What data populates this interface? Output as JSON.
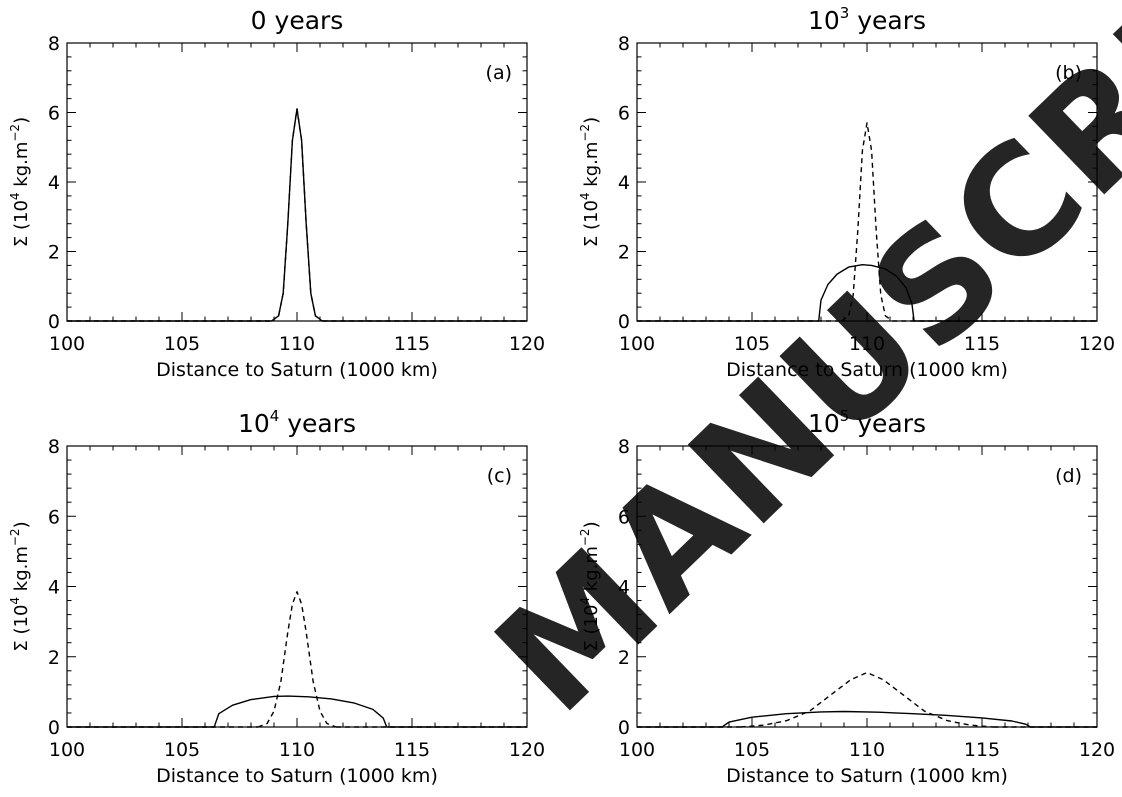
{
  "watermark": "MANUSCRIPT",
  "chart_data": [
    {
      "type": "line",
      "panel_label": "(a)",
      "title_base": "0 years",
      "title_sup": "",
      "title_suffix": "",
      "xlabel": "Distance to Saturn (1000 km)",
      "ylabel_parts": [
        "Σ (10",
        "4",
        " kg.m",
        "−2",
        ")"
      ],
      "xlim": [
        100,
        120
      ],
      "ylim": [
        0,
        8
      ],
      "x_ticks": [
        "100",
        "105",
        "110",
        "115",
        "120"
      ],
      "y_ticks": [
        "0",
        "2",
        "4",
        "6",
        "8"
      ],
      "series": [
        {
          "style": "solid",
          "x": [
            108.9,
            109.2,
            109.4,
            109.6,
            109.8,
            110.0,
            110.2,
            110.4,
            110.6,
            110.8,
            111.1
          ],
          "y": [
            0,
            0.15,
            0.8,
            2.8,
            5.2,
            6.1,
            5.2,
            2.8,
            0.8,
            0.15,
            0
          ]
        },
        {
          "style": "dashed",
          "x": [
            108.9,
            109.2,
            109.4,
            109.6,
            109.8,
            110.0,
            110.2,
            110.4,
            110.6,
            110.8,
            111.1
          ],
          "y": [
            0,
            0.15,
            0.8,
            2.8,
            5.2,
            6.1,
            5.2,
            2.8,
            0.8,
            0.15,
            0
          ]
        }
      ]
    },
    {
      "type": "line",
      "panel_label": "(b)",
      "title_base": "10",
      "title_sup": "3",
      "title_suffix": " years",
      "xlabel": "Distance to Saturn (1000 km)",
      "ylabel_parts": [
        "Σ (10",
        "4",
        " kg.m",
        "−2",
        ")"
      ],
      "xlim": [
        100,
        120
      ],
      "ylim": [
        0,
        8
      ],
      "x_ticks": [
        "100",
        "105",
        "110",
        "115",
        "120"
      ],
      "y_ticks": [
        "0",
        "2",
        "4",
        "6",
        "8"
      ],
      "series": [
        {
          "style": "solid",
          "x": [
            107.9,
            108.0,
            108.3,
            108.7,
            109.2,
            109.8,
            110.2,
            110.8,
            111.3,
            111.7,
            111.95,
            112.05
          ],
          "y": [
            0,
            0.6,
            1.05,
            1.35,
            1.55,
            1.62,
            1.6,
            1.5,
            1.28,
            0.95,
            0.5,
            0
          ]
        },
        {
          "style": "dashed",
          "x": [
            108.9,
            109.2,
            109.4,
            109.6,
            109.8,
            110.0,
            110.2,
            110.4,
            110.6,
            110.8,
            111.1
          ],
          "y": [
            0,
            0.15,
            0.75,
            2.6,
            4.9,
            5.7,
            4.9,
            2.6,
            0.75,
            0.15,
            0
          ]
        }
      ]
    },
    {
      "type": "line",
      "panel_label": "(c)",
      "title_base": "10",
      "title_sup": "4",
      "title_suffix": " years",
      "xlabel": "Distance to Saturn (1000 km)",
      "ylabel_parts": [
        "Σ (10",
        "4",
        " kg.m",
        "−2",
        ")"
      ],
      "xlim": [
        100,
        120
      ],
      "ylim": [
        0,
        8
      ],
      "x_ticks": [
        "100",
        "105",
        "110",
        "115",
        "120"
      ],
      "y_ticks": [
        "0",
        "2",
        "4",
        "6",
        "8"
      ],
      "series": [
        {
          "style": "solid",
          "x": [
            106.4,
            106.6,
            107.2,
            108.0,
            109.0,
            109.6,
            110.5,
            111.5,
            112.5,
            113.3,
            113.75,
            113.9
          ],
          "y": [
            0,
            0.38,
            0.62,
            0.78,
            0.87,
            0.88,
            0.86,
            0.8,
            0.68,
            0.5,
            0.25,
            0
          ]
        },
        {
          "style": "dashed",
          "x": [
            108.3,
            108.7,
            109.0,
            109.3,
            109.6,
            109.8,
            110.0,
            110.2,
            110.4,
            110.7,
            111.0,
            111.3,
            111.7
          ],
          "y": [
            0,
            0.1,
            0.45,
            1.3,
            2.7,
            3.5,
            3.85,
            3.5,
            2.7,
            1.3,
            0.45,
            0.1,
            0
          ]
        }
      ]
    },
    {
      "type": "line",
      "panel_label": "(d)",
      "title_base": "10",
      "title_sup": "5",
      "title_suffix": " years",
      "xlabel": "Distance to Saturn (1000 km)",
      "ylabel_parts": [
        "Σ (10",
        "4",
        " kg.m",
        "−2",
        ")"
      ],
      "xlim": [
        100,
        120
      ],
      "ylim": [
        0,
        8
      ],
      "x_ticks": [
        "100",
        "105",
        "110",
        "115",
        "120"
      ],
      "y_ticks": [
        "0",
        "2",
        "4",
        "6",
        "8"
      ],
      "series": [
        {
          "style": "solid",
          "x": [
            103.7,
            104.0,
            105.0,
            106.5,
            108.0,
            109.0,
            110.5,
            112.0,
            113.5,
            115.0,
            116.3,
            116.9,
            117.1
          ],
          "y": [
            0,
            0.14,
            0.28,
            0.38,
            0.43,
            0.44,
            0.42,
            0.38,
            0.33,
            0.26,
            0.17,
            0.08,
            0
          ]
        },
        {
          "style": "dashed",
          "x": [
            104.5,
            105.5,
            106.5,
            107.5,
            108.5,
            109.3,
            110.0,
            110.7,
            111.5,
            112.5,
            113.5,
            114.5,
            115.5
          ],
          "y": [
            0,
            0.05,
            0.18,
            0.45,
            0.95,
            1.35,
            1.55,
            1.35,
            0.95,
            0.45,
            0.18,
            0.05,
            0
          ]
        }
      ]
    }
  ]
}
